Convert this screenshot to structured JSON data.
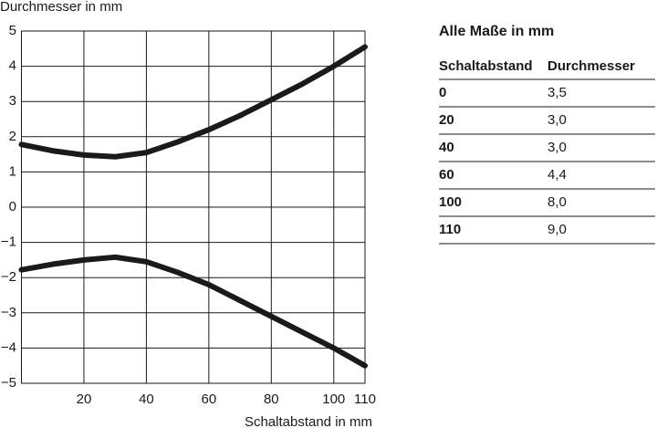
{
  "chart_data": {
    "type": "line",
    "y_label": "Durchmesser in mm",
    "x_label": "Schaltabstand in mm",
    "xlim": [
      0,
      110
    ],
    "xticks": [
      20,
      40,
      60,
      80,
      100,
      110
    ],
    "ylim": [
      -5,
      5
    ],
    "yticks": [
      {
        "value": -5,
        "label": "−5"
      },
      {
        "value": -4,
        "label": "−4"
      },
      {
        "value": -3,
        "label": "−3"
      },
      {
        "value": -2,
        "label": "−2"
      },
      {
        "value": -1,
        "label": "−1"
      },
      0,
      1,
      2,
      3,
      4,
      5
    ],
    "grid": true,
    "x": [
      0,
      10,
      20,
      30,
      40,
      50,
      60,
      70,
      80,
      90,
      100,
      110
    ],
    "series": [
      {
        "color": "#1a1a1a",
        "values": [
          1.78,
          1.6,
          1.48,
          1.43,
          1.55,
          1.85,
          2.2,
          2.6,
          3.05,
          3.5,
          4.0,
          4.55
        ]
      },
      {
        "color": "#1a1a1a",
        "values": [
          -1.78,
          -1.62,
          -1.5,
          -1.42,
          -1.55,
          -1.85,
          -2.2,
          -2.65,
          -3.1,
          -3.55,
          -4.0,
          -4.5
        ]
      }
    ]
  },
  "table": {
    "title": "Alle Maße in mm",
    "header": [
      "Schaltabstand",
      "Durchmesser"
    ],
    "rows": [
      [
        "0",
        "3,5"
      ],
      [
        "20",
        "3,0"
      ],
      [
        "40",
        "3,0"
      ],
      [
        "60",
        "4,4"
      ],
      [
        "100",
        "8,0"
      ],
      [
        "110",
        "9,0"
      ]
    ]
  }
}
